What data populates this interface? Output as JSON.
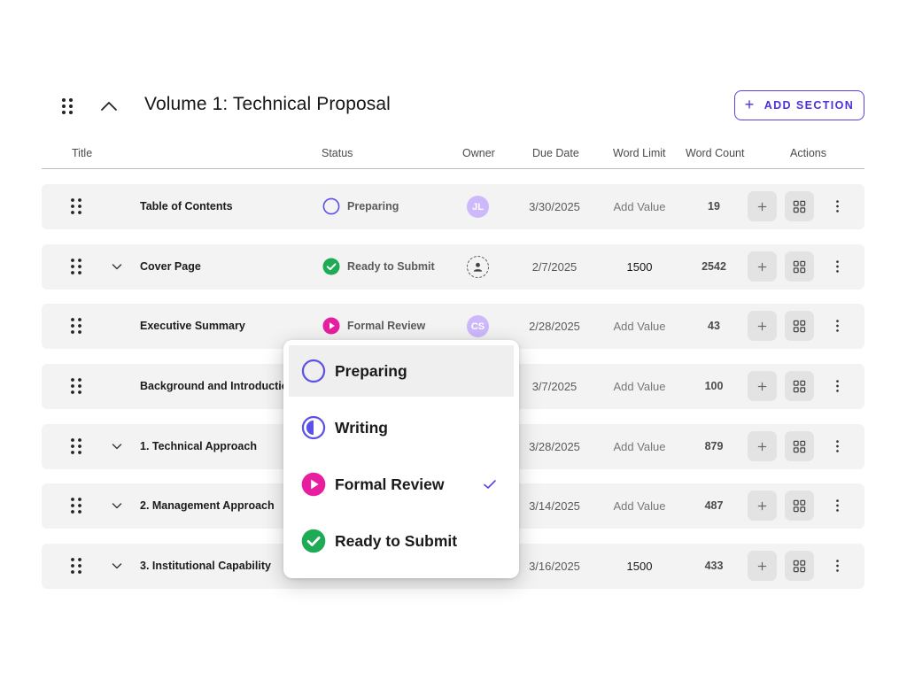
{
  "header": {
    "title": "Volume 1: Technical Proposal",
    "add_section_label": "ADD SECTION"
  },
  "columns": {
    "title": "Title",
    "status": "Status",
    "owner": "Owner",
    "due_date": "Due Date",
    "word_limit": "Word Limit",
    "word_count": "Word Count",
    "actions": "Actions"
  },
  "rows": [
    {
      "title": "Table of Contents",
      "expandable": false,
      "status": "Preparing",
      "status_icon": "preparing",
      "owner": "JL",
      "due": "3/30/2025",
      "limit": "Add Value",
      "limit_is_placeholder": true,
      "count": "19"
    },
    {
      "title": "Cover Page",
      "expandable": true,
      "status": "Ready to Submit",
      "status_icon": "ready",
      "owner": "",
      "due": "2/7/2025",
      "limit": "1500",
      "limit_is_placeholder": false,
      "count": "2542"
    },
    {
      "title": "Executive Summary",
      "expandable": false,
      "status": "Formal Review",
      "status_icon": "review",
      "owner": "CS",
      "due": "2/28/2025",
      "limit": "Add Value",
      "limit_is_placeholder": true,
      "count": "43"
    },
    {
      "title": "Background and Introduction",
      "expandable": false,
      "status": "",
      "status_icon": "",
      "owner": "",
      "due": "3/7/2025",
      "limit": "Add Value",
      "limit_is_placeholder": true,
      "count": "100"
    },
    {
      "title": "1. Technical Approach",
      "expandable": true,
      "status": "",
      "status_icon": "",
      "owner": "",
      "due": "3/28/2025",
      "limit": "Add Value",
      "limit_is_placeholder": true,
      "count": "879"
    },
    {
      "title": "2. Management Approach",
      "expandable": true,
      "status": "",
      "status_icon": "",
      "owner": "",
      "due": "3/14/2025",
      "limit": "Add Value",
      "limit_is_placeholder": true,
      "count": "487"
    },
    {
      "title": "3. Institutional Capability",
      "expandable": true,
      "status": "",
      "status_icon": "",
      "owner": "",
      "due": "3/16/2025",
      "limit": "1500",
      "limit_is_placeholder": false,
      "count": "433"
    }
  ],
  "status_menu": {
    "options": [
      {
        "label": "Preparing",
        "icon": "preparing",
        "selected": false,
        "hovered": true
      },
      {
        "label": "Writing",
        "icon": "writing",
        "selected": false,
        "hovered": false
      },
      {
        "label": "Formal Review",
        "icon": "review",
        "selected": true,
        "hovered": false
      },
      {
        "label": "Ready to Submit",
        "icon": "ready",
        "selected": false,
        "hovered": false
      }
    ]
  },
  "colors": {
    "accent": "#5b3fe6",
    "preparing": "#5b50e8",
    "writing": "#5b50e8",
    "review": "#e81ea0",
    "ready": "#1faa55",
    "avatar": "#cdb8fb",
    "row_bg": "#f3f3f3"
  }
}
